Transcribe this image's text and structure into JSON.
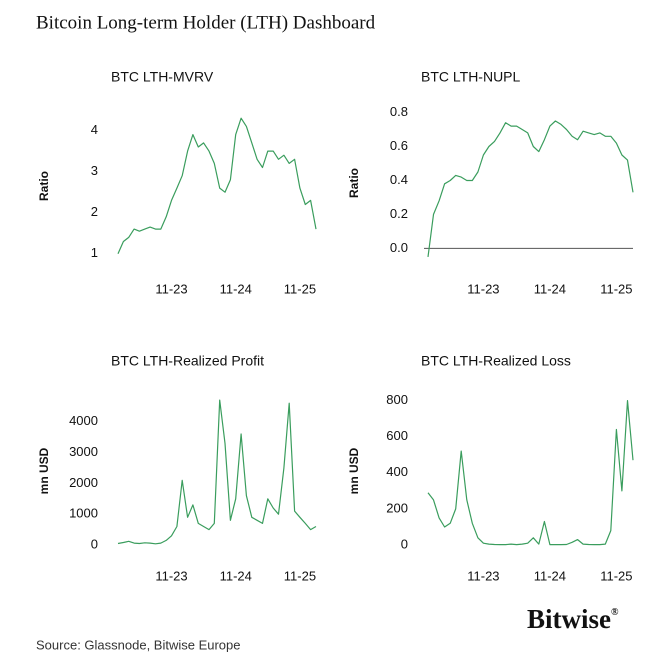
{
  "header": {
    "title": "Bitcoin Long-term Holder (LTH) Dashboard"
  },
  "chart_data": [
    {
      "type": "line",
      "title": "BTC LTH-MVRV",
      "y_label": "Ratio",
      "categories": [
        null,
        null,
        null,
        null,
        null,
        null,
        null,
        null,
        null,
        null,
        "11-23",
        null,
        null,
        null,
        null,
        null,
        null,
        null,
        null,
        null,
        null,
        null,
        "11-24",
        null,
        null,
        null,
        null,
        null,
        null,
        null,
        null,
        null,
        null,
        null,
        "11-25",
        null,
        null,
        null
      ],
      "values": [
        1.0,
        1.3,
        1.4,
        1.6,
        1.55,
        1.6,
        1.65,
        1.6,
        1.6,
        1.9,
        2.3,
        2.6,
        2.9,
        3.5,
        3.9,
        3.6,
        3.7,
        3.5,
        3.2,
        2.6,
        2.5,
        2.8,
        3.9,
        4.3,
        4.1,
        3.7,
        3.3,
        3.1,
        3.5,
        3.5,
        3.3,
        3.4,
        3.2,
        3.3,
        2.6,
        2.2,
        2.3,
        1.6
      ],
      "color": "#3a9d5d",
      "ylim": [
        0.8,
        4.5
      ],
      "yticks": [
        1,
        2,
        3,
        4
      ]
    },
    {
      "type": "line",
      "title": "BTC LTH-NUPL",
      "y_label": "Ratio",
      "categories": [
        null,
        null,
        null,
        null,
        null,
        null,
        null,
        null,
        null,
        null,
        "11-23",
        null,
        null,
        null,
        null,
        null,
        null,
        null,
        null,
        null,
        null,
        null,
        "11-24",
        null,
        null,
        null,
        null,
        null,
        null,
        null,
        null,
        null,
        null,
        null,
        "11-25",
        null,
        null,
        null
      ],
      "values": [
        -0.05,
        0.2,
        0.28,
        0.38,
        0.4,
        0.43,
        0.42,
        0.4,
        0.4,
        0.45,
        0.55,
        0.6,
        0.63,
        0.68,
        0.74,
        0.72,
        0.72,
        0.7,
        0.68,
        0.6,
        0.57,
        0.64,
        0.72,
        0.75,
        0.73,
        0.7,
        0.66,
        0.64,
        0.69,
        0.68,
        0.67,
        0.68,
        0.66,
        0.66,
        0.62,
        0.55,
        0.52,
        0.33
      ],
      "color": "#3a9d5d",
      "ylim": [
        -0.08,
        0.85
      ],
      "yticks": [
        {
          "value": 0,
          "label": "0.0"
        },
        0.2,
        0.4,
        0.6,
        0.8
      ],
      "zero_line": true
    },
    {
      "type": "line",
      "title": "BTC LTH-Realized Profit",
      "y_label": "mn USD",
      "categories": [
        null,
        null,
        null,
        null,
        null,
        null,
        null,
        null,
        null,
        null,
        "11-23",
        null,
        null,
        null,
        null,
        null,
        null,
        null,
        null,
        null,
        null,
        null,
        "11-24",
        null,
        null,
        null,
        null,
        null,
        null,
        null,
        null,
        null,
        null,
        null,
        "11-25",
        null,
        null,
        null
      ],
      "values": [
        50,
        80,
        120,
        60,
        50,
        70,
        60,
        40,
        60,
        150,
        300,
        600,
        2100,
        900,
        1300,
        700,
        600,
        500,
        700,
        4700,
        3300,
        800,
        1500,
        3600,
        1600,
        900,
        800,
        700,
        1500,
        1200,
        1000,
        2500,
        4600,
        1100,
        900,
        700,
        500,
        600
      ],
      "color": "#3a9d5d",
      "ylim": [
        0,
        4800
      ],
      "yticks": [
        0,
        1000,
        2000,
        3000,
        4000
      ]
    },
    {
      "type": "line",
      "title": "BTC LTH-Realized Loss",
      "y_label": "mn USD",
      "categories": [
        null,
        null,
        null,
        null,
        null,
        null,
        null,
        null,
        null,
        null,
        "11-23",
        null,
        null,
        null,
        null,
        null,
        null,
        null,
        null,
        null,
        null,
        null,
        "11-24",
        null,
        null,
        null,
        null,
        null,
        null,
        null,
        null,
        null,
        null,
        null,
        "11-25",
        null,
        null,
        null
      ],
      "values": [
        290,
        250,
        150,
        100,
        120,
        200,
        520,
        250,
        120,
        40,
        10,
        5,
        3,
        2,
        2,
        5,
        2,
        5,
        10,
        40,
        5,
        130,
        2,
        2,
        2,
        3,
        15,
        30,
        5,
        3,
        2,
        2,
        5,
        80,
        640,
        300,
        800,
        470
      ],
      "color": "#3a9d5d",
      "ylim": [
        0,
        820
      ],
      "yticks": [
        0,
        200,
        400,
        600,
        800
      ]
    }
  ],
  "footer": {
    "source": "Source: Glassnode, Bitwise Europe",
    "logo": "Bitwise",
    "logo_mark": "®"
  }
}
